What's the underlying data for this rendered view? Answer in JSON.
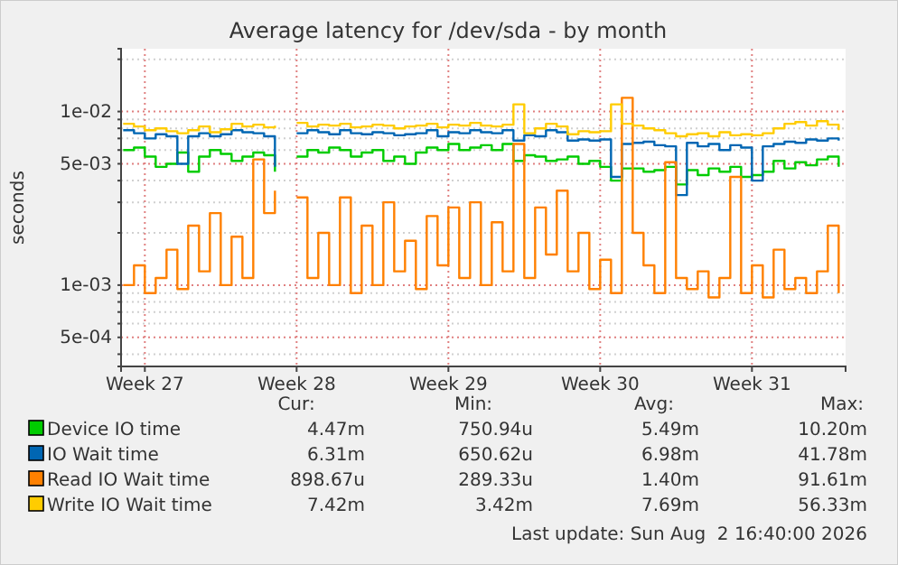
{
  "chart_data": {
    "type": "step",
    "title": "Average latency for /dev/sda - by month",
    "ylabel": "seconds",
    "log": true,
    "grid": true,
    "legend": "bottom",
    "xlim": [
      "2026-06-30T06:40",
      "2026-08-02T16:40"
    ],
    "ylim": [
      0.00034,
      0.023
    ],
    "x": [
      "2026-06-30T09:00",
      "2026-06-30T21:00",
      "2026-07-01T09:00",
      "2026-07-01T21:00",
      "2026-07-02T09:00",
      "2026-07-02T21:00",
      "2026-07-03T09:00",
      "2026-07-03T21:00",
      "2026-07-04T09:00",
      "2026-07-04T21:00",
      "2026-07-05T09:00",
      "2026-07-05T21:00",
      "2026-07-06T09:00",
      "2026-07-06T21:00",
      "2026-07-07T09:00",
      "2026-07-07T21:00",
      "2026-07-08T09:00",
      "2026-07-08T21:00",
      "2026-07-09T09:00",
      "2026-07-09T21:00",
      "2026-07-10T09:00",
      "2026-07-10T21:00",
      "2026-07-11T09:00",
      "2026-07-11T21:00",
      "2026-07-12T09:00",
      "2026-07-12T21:00",
      "2026-07-13T09:00",
      "2026-07-13T21:00",
      "2026-07-14T09:00",
      "2026-07-14T21:00",
      "2026-07-15T09:00",
      "2026-07-15T21:00",
      "2026-07-16T09:00",
      "2026-07-16T21:00",
      "2026-07-17T09:00",
      "2026-07-17T21:00",
      "2026-07-18T09:00",
      "2026-07-18T21:00",
      "2026-07-19T09:00",
      "2026-07-19T21:00",
      "2026-07-20T09:00",
      "2026-07-20T21:00",
      "2026-07-21T09:00",
      "2026-07-21T21:00",
      "2026-07-22T09:00",
      "2026-07-22T21:00",
      "2026-07-23T09:00",
      "2026-07-23T21:00",
      "2026-07-24T09:00",
      "2026-07-24T21:00",
      "2026-07-25T09:00",
      "2026-07-25T21:00",
      "2026-07-26T09:00",
      "2026-07-26T21:00",
      "2026-07-27T09:00",
      "2026-07-27T21:00",
      "2026-07-28T09:00",
      "2026-07-28T21:00",
      "2026-07-29T09:00",
      "2026-07-29T21:00",
      "2026-07-30T09:00",
      "2026-07-30T21:00",
      "2026-07-31T09:00",
      "2026-07-31T21:00",
      "2026-08-01T09:00",
      "2026-08-01T21:00",
      "2026-08-02T09:00"
    ],
    "xticks": [
      {
        "value": "2026-07-01T09:00",
        "label": "Week 27"
      },
      {
        "value": "2026-07-08T09:00",
        "label": "Week 28"
      },
      {
        "value": "2026-07-15T09:00",
        "label": "Week 29"
      },
      {
        "value": "2026-07-22T09:00",
        "label": "Week 30"
      },
      {
        "value": "2026-07-29T09:00",
        "label": "Week 31"
      }
    ],
    "yticks": [
      {
        "value": 0.0004,
        "label": null
      },
      {
        "value": 0.0005,
        "label": "5e-04"
      },
      {
        "value": 0.0006,
        "label": null
      },
      {
        "value": 0.0007,
        "label": null
      },
      {
        "value": 0.0008,
        "label": null
      },
      {
        "value": 0.0009,
        "label": null
      },
      {
        "value": 0.001,
        "label": "1e-03"
      },
      {
        "value": 0.002,
        "label": null
      },
      {
        "value": 0.003,
        "label": null
      },
      {
        "value": 0.004,
        "label": null
      },
      {
        "value": 0.005,
        "label": "5e-03"
      },
      {
        "value": 0.006,
        "label": null
      },
      {
        "value": 0.007,
        "label": null
      },
      {
        "value": 0.008,
        "label": null
      },
      {
        "value": 0.009,
        "label": null
      },
      {
        "value": 0.01,
        "label": "1e-02"
      },
      {
        "value": 0.02,
        "label": null
      }
    ],
    "series": [
      {
        "name": "Device IO time",
        "color": "#00cc00",
        "values": [
          0.006,
          0.0062,
          0.0055,
          0.0048,
          0.005,
          0.0058,
          0.0045,
          0.0055,
          0.006,
          0.0057,
          0.0052,
          0.0055,
          0.0058,
          0.0056,
          0.0045,
          null,
          0.0055,
          0.006,
          0.0058,
          0.0062,
          0.006,
          0.0055,
          0.0058,
          0.006,
          0.0052,
          0.0055,
          0.005,
          0.0058,
          0.0062,
          0.006,
          0.0065,
          0.006,
          0.0062,
          0.0064,
          0.006,
          0.0065,
          0.0052,
          0.0056,
          0.0055,
          0.0052,
          0.0053,
          0.0055,
          0.005,
          0.0052,
          0.0048,
          0.004,
          0.0047,
          0.0047,
          0.0045,
          0.0046,
          0.0048,
          0.0038,
          0.0046,
          0.0043,
          0.0047,
          0.0045,
          0.0048,
          0.0042,
          0.0043,
          0.0045,
          0.0052,
          0.0047,
          0.0051,
          0.0049,
          0.0053,
          0.0055,
          0.0048
        ]
      },
      {
        "name": "IO Wait time",
        "color": "#0066b3",
        "values": [
          0.0078,
          0.0075,
          0.007,
          0.0074,
          0.0072,
          0.005,
          0.0072,
          0.0075,
          0.0072,
          0.0074,
          0.0078,
          0.0076,
          0.0075,
          0.0072,
          0.0048,
          null,
          0.0075,
          0.0078,
          0.0076,
          0.0074,
          0.0078,
          0.0075,
          0.0074,
          0.0076,
          0.0075,
          0.0073,
          0.0074,
          0.0075,
          0.0078,
          0.0072,
          0.0076,
          0.0075,
          0.0078,
          0.0076,
          0.0075,
          0.0078,
          0.0068,
          0.0073,
          0.0072,
          0.0078,
          0.0076,
          0.0068,
          0.0069,
          0.0068,
          0.0069,
          0.0042,
          0.0065,
          0.0066,
          0.0067,
          0.0064,
          0.0063,
          0.0033,
          0.0066,
          0.0063,
          0.0065,
          0.006,
          0.0064,
          0.0062,
          0.004,
          0.0063,
          0.0065,
          0.0067,
          0.0066,
          0.0069,
          0.0068,
          0.007,
          0.0068
        ]
      },
      {
        "name": "Read IO Wait time",
        "color": "#ff8000",
        "values": [
          0.001,
          0.0013,
          0.0009,
          0.0011,
          0.0016,
          0.00095,
          0.0022,
          0.0012,
          0.0026,
          0.001,
          0.0019,
          0.0011,
          0.0053,
          0.0026,
          0.0035,
          null,
          0.0032,
          0.0011,
          0.002,
          0.001,
          0.0032,
          0.0009,
          0.0022,
          0.001,
          0.003,
          0.0012,
          0.0018,
          0.00095,
          0.0025,
          0.0013,
          0.0028,
          0.0011,
          0.003,
          0.001,
          0.0023,
          0.0012,
          0.0065,
          0.0011,
          0.0028,
          0.0015,
          0.0035,
          0.0012,
          0.002,
          0.00095,
          0.0014,
          0.0009,
          0.012,
          0.002,
          0.0013,
          0.0009,
          0.0051,
          0.0011,
          0.00095,
          0.0012,
          0.00085,
          0.0011,
          0.0042,
          0.0009,
          0.0013,
          0.00085,
          0.0016,
          0.00095,
          0.0011,
          0.0009,
          0.0012,
          0.0022,
          0.0009
        ]
      },
      {
        "name": "Write IO Wait time",
        "color": "#ffcc00",
        "values": [
          0.0085,
          0.0082,
          0.0078,
          0.008,
          0.0077,
          0.0075,
          0.0078,
          0.0082,
          0.0076,
          0.0079,
          0.0085,
          0.0082,
          0.0084,
          0.0081,
          0.0083,
          null,
          0.0086,
          0.0082,
          0.0084,
          0.0083,
          0.0085,
          0.0081,
          0.0082,
          0.0084,
          0.0083,
          0.008,
          0.0082,
          0.0083,
          0.0085,
          0.0081,
          0.0084,
          0.0083,
          0.0086,
          0.0083,
          0.0082,
          0.0084,
          0.011,
          0.0075,
          0.008,
          0.0085,
          0.0082,
          0.0074,
          0.0077,
          0.0076,
          0.0077,
          0.011,
          0.0085,
          0.0083,
          0.008,
          0.0078,
          0.0075,
          0.0072,
          0.0074,
          0.0075,
          0.0072,
          0.0076,
          0.0073,
          0.0074,
          0.0073,
          0.0075,
          0.008,
          0.0085,
          0.0087,
          0.0083,
          0.0088,
          0.0084,
          0.0078
        ]
      }
    ],
    "annotations": [
      "Cur:",
      "Min:",
      "Avg:",
      "Max:",
      "4.47m",
      "750.94u",
      "5.49m",
      "10.20m",
      "6.31m",
      "650.62u",
      "6.98m",
      "41.78m",
      "898.67u",
      "289.33u",
      "1.40m",
      "91.61m",
      "7.42m",
      "3.42m",
      "7.69m",
      "56.33m",
      "Last update: Sun Aug  2 16:40:00 2026"
    ]
  }
}
